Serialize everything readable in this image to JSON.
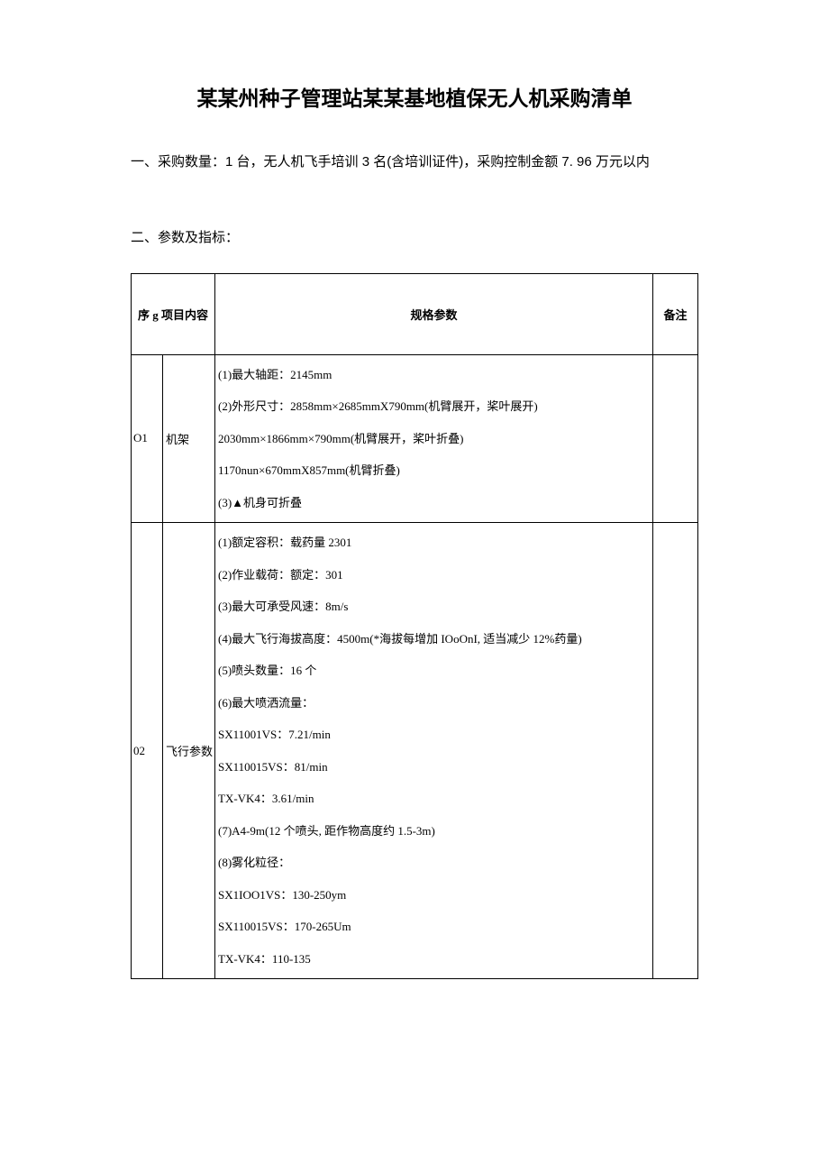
{
  "title": "某某州种子管理站某某基地植保无人机采购清单",
  "section1": {
    "label": "一、采购数量：",
    "text": "1 台，无人机飞手培训 3 名(含培训证件)，采购控制金额 7. 96 万元以内"
  },
  "section2_label": "二、参数及指标：",
  "table": {
    "headers": {
      "seq_prefix": "序 ",
      "seq_u": "g",
      "item": " 项目内容",
      "spec": "规格参数",
      "note": "备注"
    },
    "rows": [
      {
        "seq": "O1",
        "item": "机架",
        "specs": [
          "(1)最大轴距：2145mm",
          "(2)外形尺寸：2858mm×2685mmX790mm(机臂展开，桨叶展开)",
          "2030mm×1866mm×790mm(机臂展开，桨叶折叠)",
          "1170nun×670mmX857mm(机臂折叠)",
          "(3)▲机身可折叠"
        ],
        "note": ""
      },
      {
        "seq": "02",
        "item": "飞行参数",
        "specs": [
          "(1)额定容积：载药量 2301",
          "(2)作业载荷：额定：301",
          "(3)最大可承受风速：8m/s",
          "(4)最大飞行海拔高度：4500m(*海拔每增加 IOoOnI, 适当减少 12%药量)",
          "(5)喷头数量：16 个",
          "(6)最大喷洒流量：",
          "SX11001VS：7.21/min",
          "SX110015VS：81/min",
          "TX-VK4：3.61/min",
          "(7)A4-9m(12 个喷头, 距作物高度约 1.5-3m)",
          "(8)雾化粒径：",
          "SX1IOO1VS：130-250ym",
          "SX110015VS：170-265Um",
          "TX-VK4：110-135"
        ],
        "note": ""
      }
    ]
  }
}
